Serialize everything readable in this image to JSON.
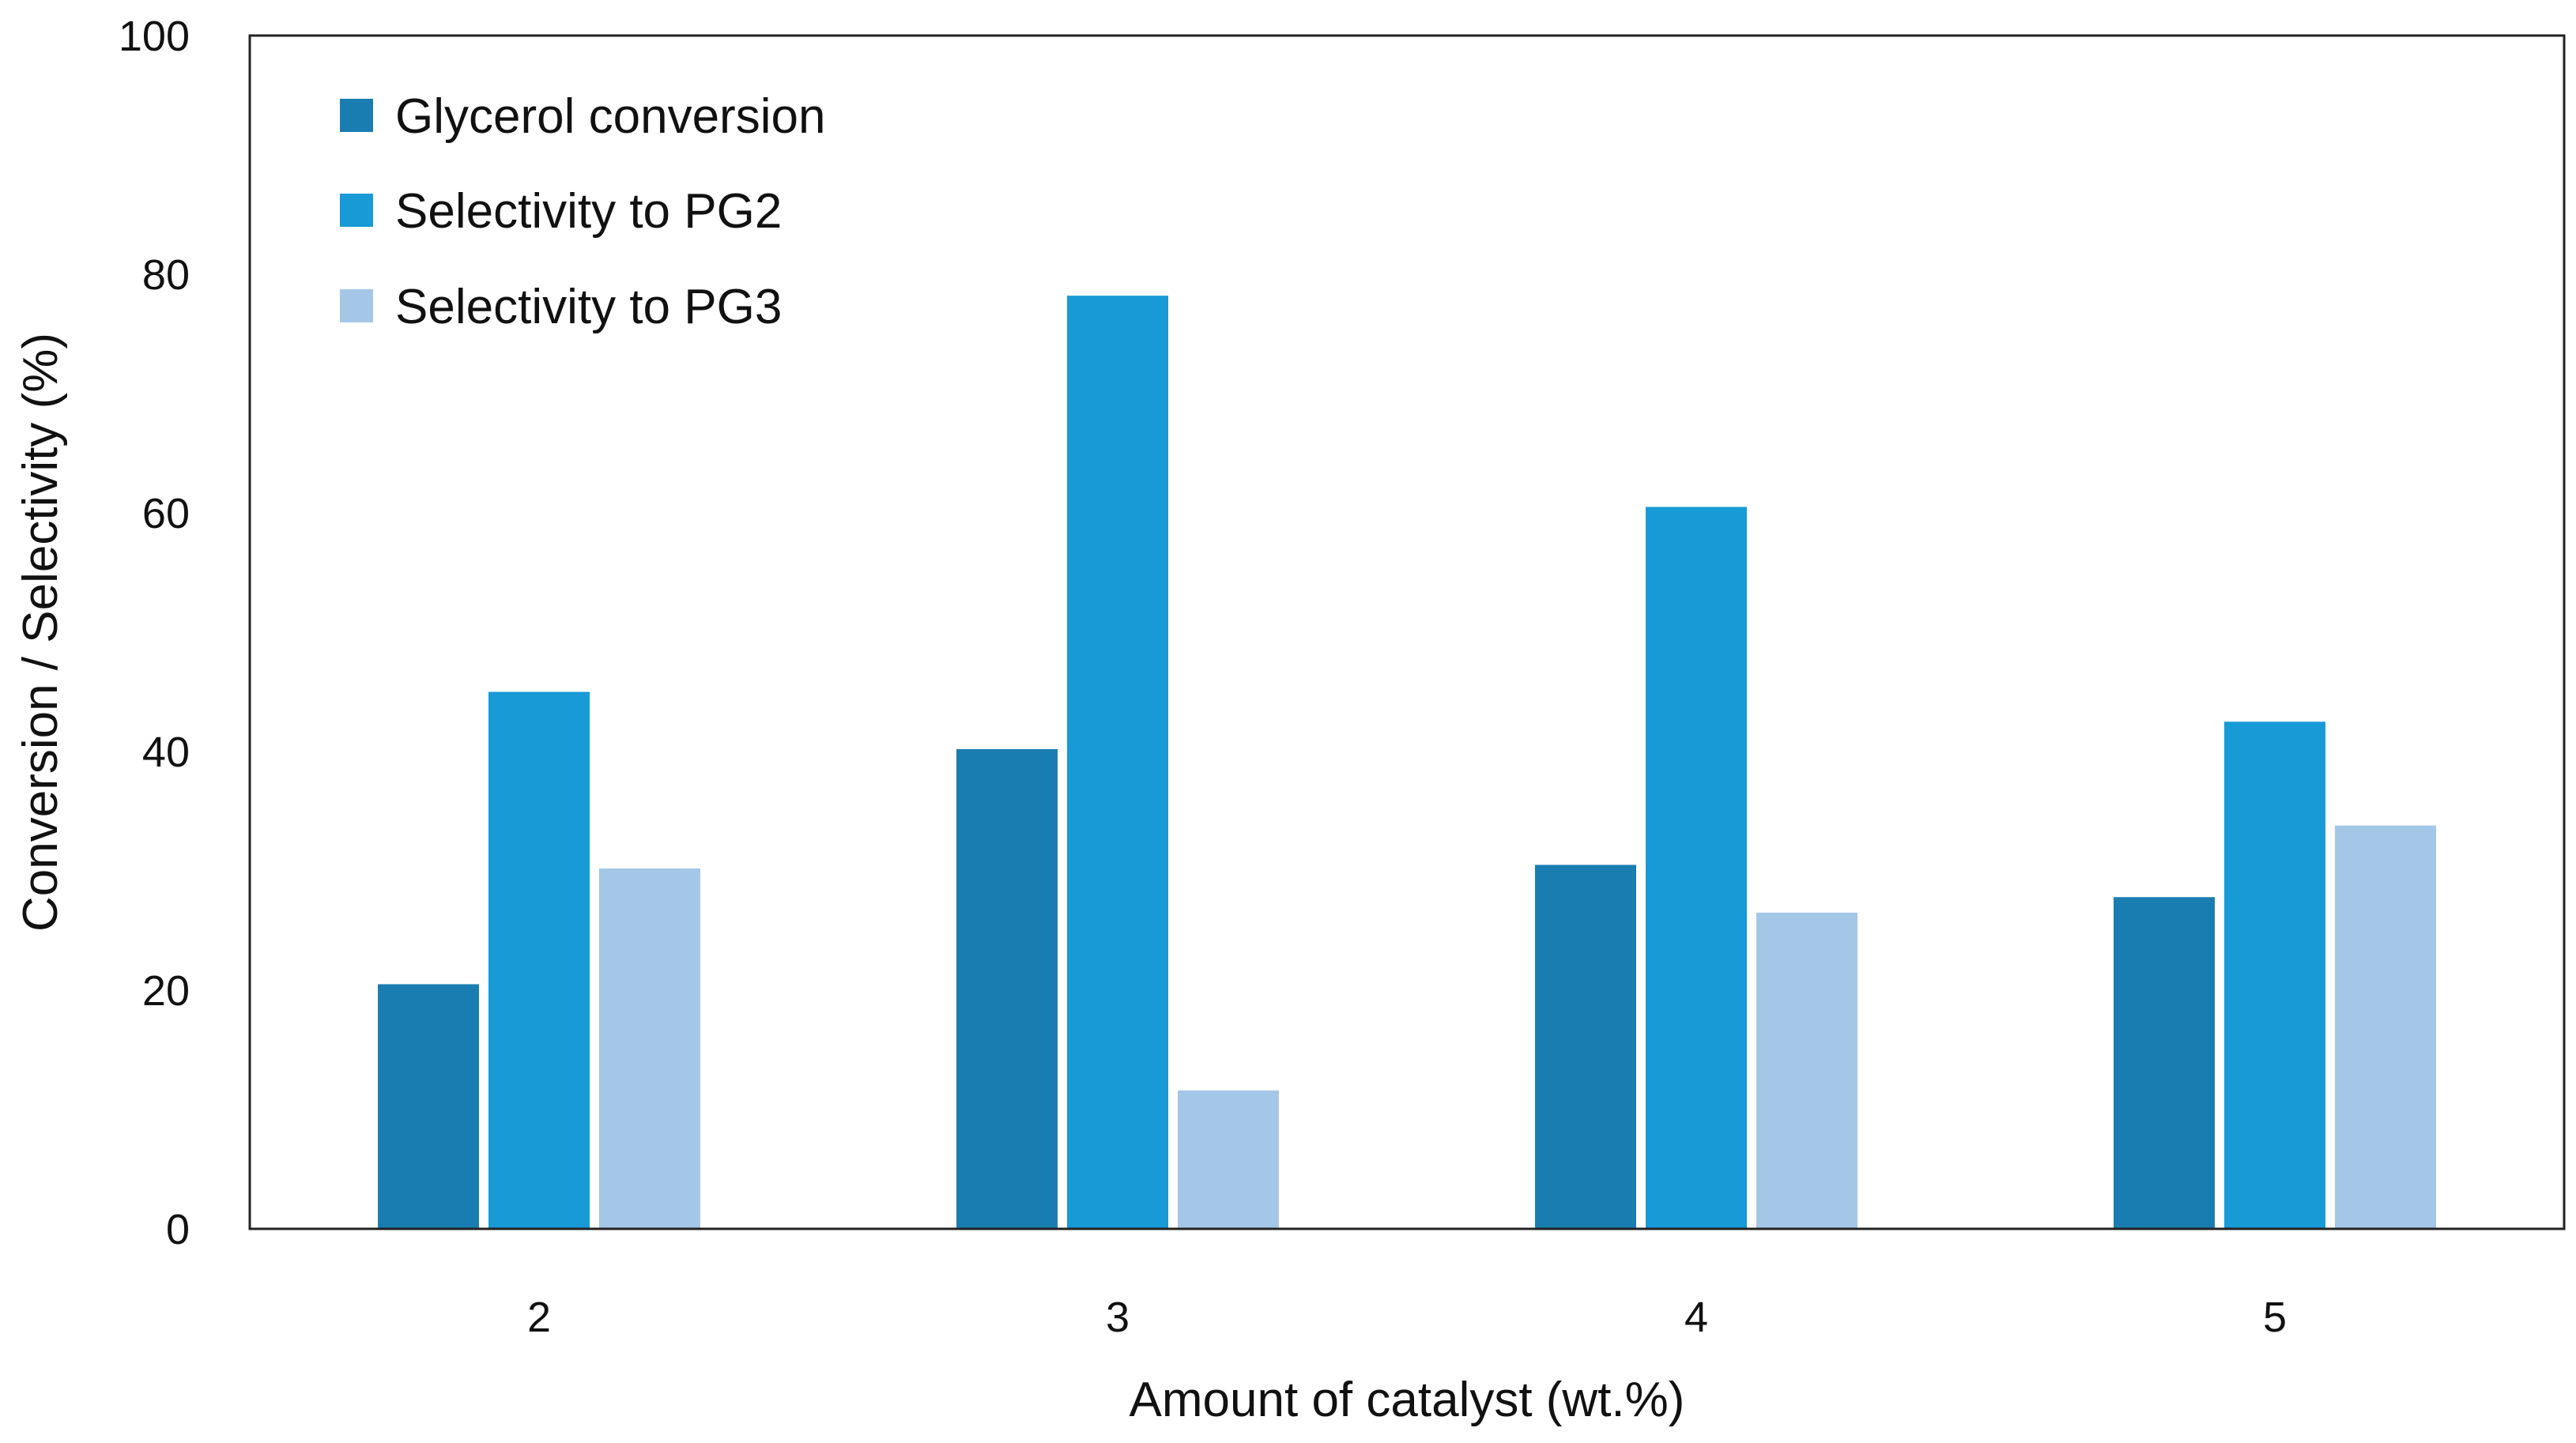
{
  "chart_data": {
    "type": "bar",
    "title": "",
    "xlabel": "Amount of catalyst (wt.%)",
    "ylabel": "Conversion / Selectivity (%)",
    "ylim": [
      0,
      100
    ],
    "yticks": [
      "0",
      "20",
      "40",
      "60",
      "80",
      "100"
    ],
    "categories": [
      "2",
      "3",
      "4",
      "5"
    ],
    "series": [
      {
        "name": "Glycerol conversion",
        "color": "#1a7db1",
        "values": [
          20.5,
          40.2,
          30.5,
          27.8
        ]
      },
      {
        "name": "Selectivity to PG2",
        "color": "#189ad6",
        "values": [
          45.0,
          78.2,
          60.5,
          42.5
        ]
      },
      {
        "name": "Selectivity to PG3",
        "color": "#a4c7e8",
        "values": [
          30.2,
          11.6,
          26.5,
          33.8
        ]
      }
    ],
    "legend_position": "top-left",
    "grid": false
  }
}
